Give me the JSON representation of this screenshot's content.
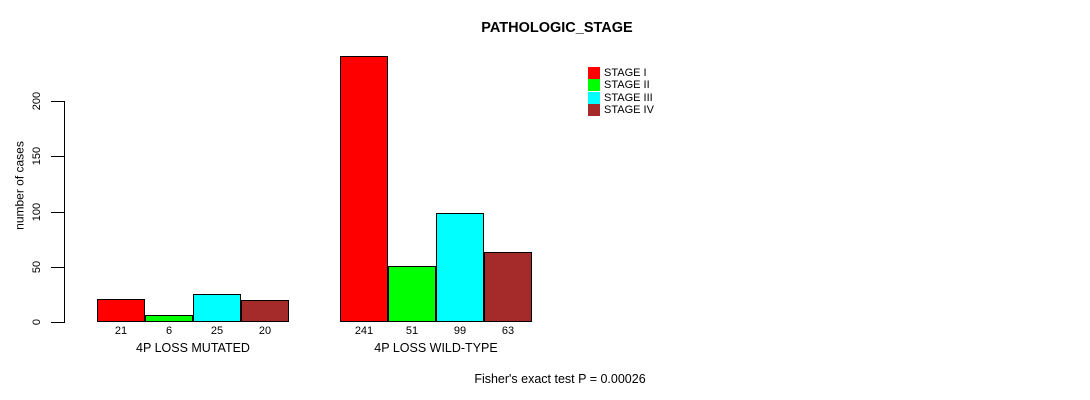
{
  "chart_data": {
    "type": "bar",
    "title": "PATHOLOGIC_STAGE",
    "xlabel": "",
    "ylabel": "number of cases",
    "yticks": [
      0,
      50,
      100,
      150,
      200
    ],
    "ylim": [
      0,
      245
    ],
    "grid": false,
    "legend_position": "top-right",
    "categories": [
      "4P LOSS MUTATED",
      "4P LOSS WILD-TYPE"
    ],
    "series": [
      {
        "name": "STAGE I",
        "color": "#FF0000",
        "values": [
          21,
          241
        ]
      },
      {
        "name": "STAGE II",
        "color": "#00FF00",
        "values": [
          6,
          51
        ]
      },
      {
        "name": "STAGE III",
        "color": "#00FFFF",
        "values": [
          25,
          99
        ]
      },
      {
        "name": "STAGE IV",
        "color": "#A52A2A",
        "values": [
          20,
          63
        ]
      }
    ],
    "bar_value_labels": [
      [
        21,
        6,
        25,
        20
      ],
      [
        241,
        51,
        99,
        63
      ]
    ],
    "annotation": "Fisher's exact test P = 0.00026",
    "axis_color": "#000000",
    "background_color": "#FFFFFF"
  }
}
